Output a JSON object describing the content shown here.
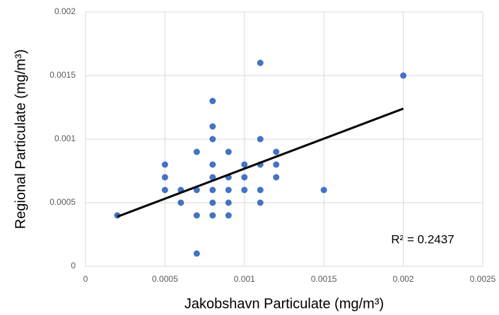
{
  "chart_data": {
    "type": "scatter",
    "x_label": "Jakobshavn Particulate (mg/m³)",
    "y_label": "Regional Particulate (mg/m³)",
    "annotation": "R² = 0.2437",
    "x": [
      0.0002,
      0.0005,
      0.0005,
      0.0005,
      0.0006,
      0.0006,
      0.0007,
      0.0007,
      0.0007,
      0.0007,
      0.0008,
      0.0008,
      0.0008,
      0.0008,
      0.0008,
      0.0008,
      0.0008,
      0.0008,
      0.0009,
      0.0009,
      0.0009,
      0.0009,
      0.0009,
      0.001,
      0.001,
      0.001,
      0.0011,
      0.0011,
      0.0011,
      0.0011,
      0.0011,
      0.0012,
      0.0012,
      0.0012,
      0.0015,
      0.002
    ],
    "values": [
      0.0004,
      0.0008,
      0.0007,
      0.0006,
      0.0006,
      0.0005,
      0.0009,
      0.0006,
      0.0004,
      0.0001,
      0.0013,
      0.0011,
      0.001,
      0.0008,
      0.0007,
      0.0006,
      0.0005,
      0.0004,
      0.0009,
      0.0007,
      0.0006,
      0.0005,
      0.0004,
      0.0008,
      0.0007,
      0.0006,
      0.0016,
      0.001,
      0.0008,
      0.0006,
      0.0005,
      0.0009,
      0.0008,
      0.0007,
      0.0006,
      0.0015
    ],
    "color": "#4472c4",
    "trendline": {
      "x": [
        0.0002,
        0.002
      ],
      "values": [
        0.00039,
        0.00124
      ],
      "color": "#000000"
    },
    "xlim": [
      0,
      0.0025
    ],
    "xticks": [
      0,
      0.0005,
      0.001,
      0.0015,
      0.002,
      0.0025
    ],
    "ylim": [
      0,
      0.002
    ],
    "yticks": [
      0,
      0.0005,
      0.001,
      0.0015,
      0.002
    ],
    "grid": true
  }
}
